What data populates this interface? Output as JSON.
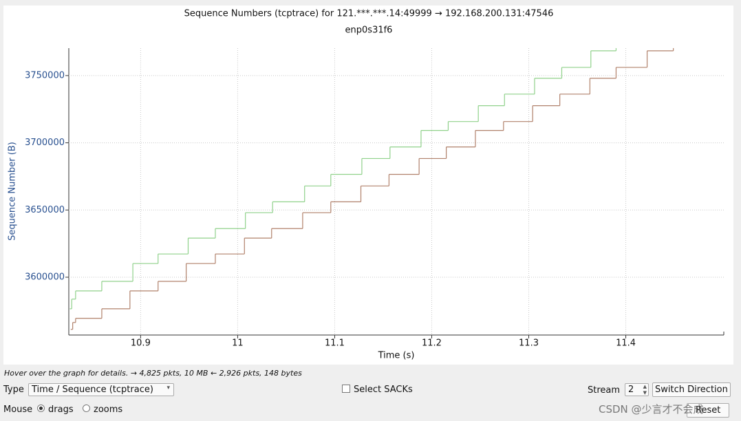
{
  "chart_data": {
    "type": "line",
    "step": "post",
    "title": "Sequence Numbers (tcptrace) for 121.***.***.14:49999 → 192.168.200.131:47546",
    "subtitle": "enp0s31f6",
    "xlabel": "Time (s)",
    "ylabel": "Sequence Number (B)",
    "xlim": [
      10.826,
      11.501
    ],
    "ylim": [
      3557000,
      3770400
    ],
    "xticks": [
      10.9,
      11,
      11.1,
      11.2,
      11.3,
      11.4
    ],
    "yticks": [
      3600000,
      3650000,
      3700000,
      3750000
    ],
    "grid": true,
    "series": [
      {
        "color": "#8fd18a",
        "x": [
          10.827,
          10.829,
          10.833,
          10.86,
          10.892,
          10.918,
          10.949,
          10.977,
          11.008,
          11.036,
          11.069,
          11.096,
          11.128,
          11.157,
          11.189,
          11.217,
          11.248,
          11.275,
          11.306,
          11.334,
          11.364,
          11.39
        ],
        "values": [
          3576500,
          3583700,
          3589800,
          3596900,
          3610200,
          3617300,
          3629100,
          3636200,
          3648000,
          3656100,
          3667900,
          3676500,
          3688300,
          3696900,
          3709200,
          3715800,
          3727600,
          3736200,
          3748000,
          3756100,
          3768400,
          3768400
        ]
      },
      {
        "color": "#b0806a",
        "x": [
          10.828,
          10.83,
          10.833,
          10.86,
          10.889,
          10.918,
          10.947,
          10.977,
          11.007,
          11.035,
          11.067,
          11.096,
          11.127,
          11.156,
          11.187,
          11.215,
          11.245,
          11.274,
          11.304,
          11.332,
          11.363,
          11.39,
          11.422,
          11.449
        ],
        "values": [
          3561200,
          3566300,
          3569400,
          3576500,
          3589800,
          3596900,
          3610200,
          3617300,
          3629100,
          3636200,
          3648000,
          3656100,
          3667900,
          3676500,
          3688300,
          3696900,
          3709200,
          3715800,
          3727600,
          3736200,
          3748000,
          3756100,
          3768400,
          3768400
        ]
      }
    ]
  },
  "ui": {
    "status": "Hover over the graph for details. → 4,825 pkts, 10 MB ← 2,926 pkts, 148 bytes",
    "type_label": "Type",
    "type_value": "Time / Sequence (tcptrace)",
    "sacks": "Select SACKs",
    "stream_label": "Stream",
    "stream_value": "2",
    "switch": "Switch Direction",
    "mouse_label": "Mouse",
    "drags": "drags",
    "zooms": "zooms",
    "reset": "Reset",
    "watermark": "CSDN @少言才不会成"
  }
}
